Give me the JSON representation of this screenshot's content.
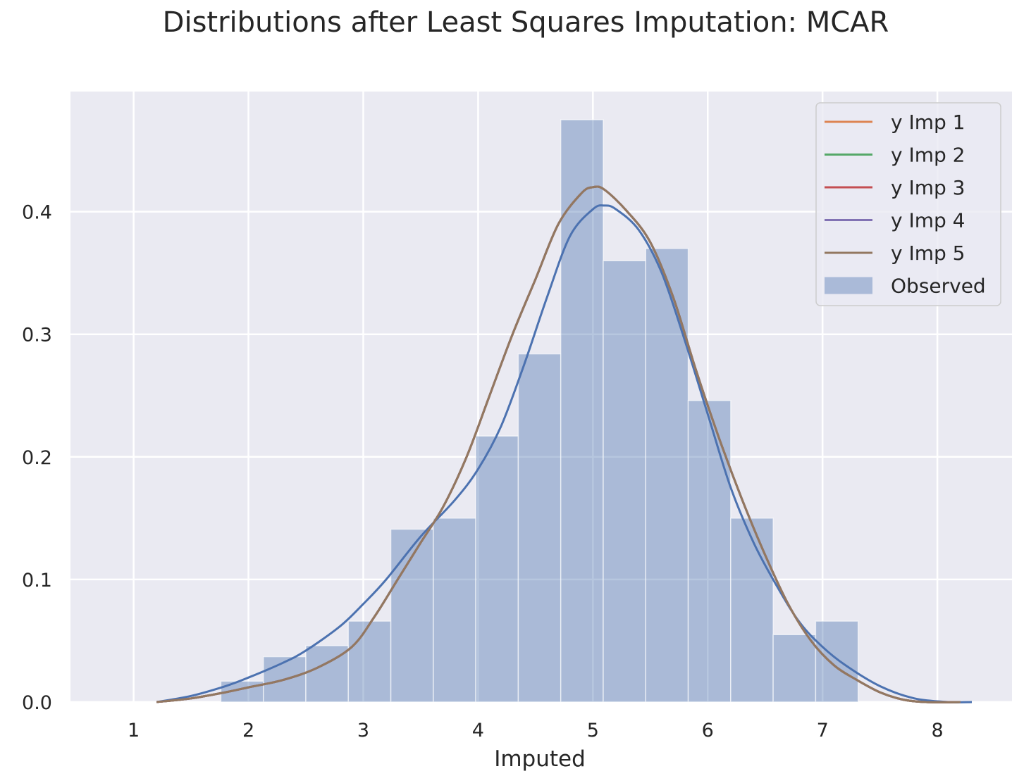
{
  "chart_data": {
    "type": "histogram_kde",
    "title": "Distributions after Least Squares Imputation: MCAR",
    "xlabel": "Imputed",
    "ylabel": "",
    "xlim": [
      0.45,
      8.65
    ],
    "ylim": [
      0,
      0.498
    ],
    "xticks": [
      1,
      2,
      3,
      4,
      5,
      6,
      7,
      8
    ],
    "xtick_labels": [
      "1",
      "2",
      "3",
      "4",
      "5",
      "6",
      "7",
      "8"
    ],
    "yticks": [
      0.0,
      0.1,
      0.2,
      0.3,
      0.4
    ],
    "ytick_labels": [
      "0.0",
      "0.1",
      "0.2",
      "0.3",
      "0.4"
    ],
    "grid": true,
    "legend_position": "top-right",
    "histogram": {
      "name": "Observed",
      "color": "#4c72b0",
      "bin_edges": [
        1.76,
        2.13,
        2.5,
        2.87,
        3.24,
        3.61,
        3.98,
        4.35,
        4.72,
        5.09,
        5.46,
        5.83,
        6.2,
        6.57,
        6.94,
        7.31
      ],
      "densities": [
        0.017,
        0.037,
        0.046,
        0.066,
        0.141,
        0.15,
        0.217,
        0.284,
        0.475,
        0.36,
        0.37,
        0.246,
        0.15,
        0.055,
        0.066
      ]
    },
    "observed_kde": {
      "color": "#4c72b0",
      "x": [
        1.2,
        1.5,
        1.8,
        2.0,
        2.3,
        2.5,
        2.8,
        3.0,
        3.2,
        3.5,
        3.8,
        4.0,
        4.2,
        4.4,
        4.6,
        4.8,
        5.0,
        5.1,
        5.2,
        5.4,
        5.6,
        5.8,
        6.0,
        6.2,
        6.4,
        6.6,
        6.8,
        7.0,
        7.2,
        7.5,
        7.8,
        8.1,
        8.3
      ],
      "y": [
        0.0,
        0.005,
        0.013,
        0.02,
        0.032,
        0.042,
        0.062,
        0.08,
        0.1,
        0.135,
        0.165,
        0.19,
        0.225,
        0.275,
        0.33,
        0.38,
        0.402,
        0.405,
        0.402,
        0.385,
        0.35,
        0.295,
        0.235,
        0.175,
        0.13,
        0.095,
        0.065,
        0.045,
        0.03,
        0.013,
        0.003,
        0.0,
        0.0
      ]
    },
    "series": [
      {
        "name": "y Imp 1",
        "color": "#dd8452",
        "x": [
          1.2,
          1.5,
          1.8,
          2.0,
          2.3,
          2.6,
          2.9,
          3.1,
          3.3,
          3.5,
          3.7,
          3.9,
          4.1,
          4.3,
          4.5,
          4.7,
          4.9,
          5.0,
          5.1,
          5.3,
          5.5,
          5.7,
          5.9,
          6.1,
          6.3,
          6.5,
          6.7,
          6.9,
          7.1,
          7.3,
          7.5,
          7.7,
          7.9,
          8.2
        ],
        "y": [
          0.0,
          0.003,
          0.008,
          0.012,
          0.018,
          0.028,
          0.045,
          0.07,
          0.1,
          0.13,
          0.16,
          0.2,
          0.25,
          0.3,
          0.345,
          0.39,
          0.415,
          0.42,
          0.418,
          0.4,
          0.375,
          0.33,
          0.27,
          0.215,
          0.165,
          0.12,
          0.08,
          0.05,
          0.03,
          0.018,
          0.008,
          0.002,
          0.0,
          0.0
        ]
      },
      {
        "name": "y Imp 2",
        "color": "#55a868",
        "x": [
          1.2,
          1.5,
          1.8,
          2.0,
          2.3,
          2.6,
          2.9,
          3.1,
          3.3,
          3.5,
          3.7,
          3.9,
          4.1,
          4.3,
          4.5,
          4.7,
          4.9,
          5.0,
          5.1,
          5.3,
          5.5,
          5.7,
          5.9,
          6.1,
          6.3,
          6.5,
          6.7,
          6.9,
          7.1,
          7.3,
          7.5,
          7.7,
          7.9,
          8.2
        ],
        "y": [
          0.0,
          0.003,
          0.008,
          0.012,
          0.018,
          0.028,
          0.045,
          0.07,
          0.1,
          0.13,
          0.16,
          0.2,
          0.25,
          0.3,
          0.345,
          0.39,
          0.415,
          0.42,
          0.418,
          0.4,
          0.375,
          0.33,
          0.27,
          0.215,
          0.165,
          0.12,
          0.08,
          0.05,
          0.03,
          0.018,
          0.008,
          0.002,
          0.0,
          0.0
        ]
      },
      {
        "name": "y Imp 3",
        "color": "#c44e52",
        "x": [
          1.2,
          1.5,
          1.8,
          2.0,
          2.3,
          2.6,
          2.9,
          3.1,
          3.3,
          3.5,
          3.7,
          3.9,
          4.1,
          4.3,
          4.5,
          4.7,
          4.9,
          5.0,
          5.1,
          5.3,
          5.5,
          5.7,
          5.9,
          6.1,
          6.3,
          6.5,
          6.7,
          6.9,
          7.1,
          7.3,
          7.5,
          7.7,
          7.9,
          8.2
        ],
        "y": [
          0.0,
          0.003,
          0.008,
          0.012,
          0.018,
          0.028,
          0.045,
          0.07,
          0.1,
          0.13,
          0.16,
          0.2,
          0.25,
          0.3,
          0.345,
          0.39,
          0.415,
          0.42,
          0.418,
          0.4,
          0.375,
          0.33,
          0.27,
          0.215,
          0.165,
          0.12,
          0.08,
          0.05,
          0.03,
          0.018,
          0.008,
          0.002,
          0.0,
          0.0
        ]
      },
      {
        "name": "y Imp 4",
        "color": "#8172b3",
        "x": [
          1.2,
          1.5,
          1.8,
          2.0,
          2.3,
          2.6,
          2.9,
          3.1,
          3.3,
          3.5,
          3.7,
          3.9,
          4.1,
          4.3,
          4.5,
          4.7,
          4.9,
          5.0,
          5.1,
          5.3,
          5.5,
          5.7,
          5.9,
          6.1,
          6.3,
          6.5,
          6.7,
          6.9,
          7.1,
          7.3,
          7.5,
          7.7,
          7.9,
          8.2
        ],
        "y": [
          0.0,
          0.003,
          0.008,
          0.012,
          0.018,
          0.028,
          0.045,
          0.07,
          0.1,
          0.13,
          0.16,
          0.2,
          0.25,
          0.3,
          0.345,
          0.39,
          0.415,
          0.42,
          0.418,
          0.4,
          0.375,
          0.33,
          0.27,
          0.215,
          0.165,
          0.12,
          0.08,
          0.05,
          0.03,
          0.018,
          0.008,
          0.002,
          0.0,
          0.0
        ]
      },
      {
        "name": "y Imp 5",
        "color": "#937860",
        "x": [
          1.2,
          1.5,
          1.8,
          2.0,
          2.3,
          2.6,
          2.9,
          3.1,
          3.3,
          3.5,
          3.7,
          3.9,
          4.1,
          4.3,
          4.5,
          4.7,
          4.9,
          5.0,
          5.1,
          5.3,
          5.5,
          5.7,
          5.9,
          6.1,
          6.3,
          6.5,
          6.7,
          6.9,
          7.1,
          7.3,
          7.5,
          7.7,
          7.9,
          8.2
        ],
        "y": [
          0.0,
          0.003,
          0.008,
          0.012,
          0.018,
          0.028,
          0.045,
          0.07,
          0.1,
          0.13,
          0.16,
          0.2,
          0.25,
          0.3,
          0.345,
          0.39,
          0.415,
          0.42,
          0.418,
          0.4,
          0.375,
          0.33,
          0.27,
          0.215,
          0.165,
          0.12,
          0.08,
          0.05,
          0.03,
          0.018,
          0.008,
          0.002,
          0.0,
          0.0
        ]
      }
    ],
    "colors": {
      "plot_background": "#eaeaf2",
      "grid": "#ffffff",
      "text": "#262626"
    }
  }
}
